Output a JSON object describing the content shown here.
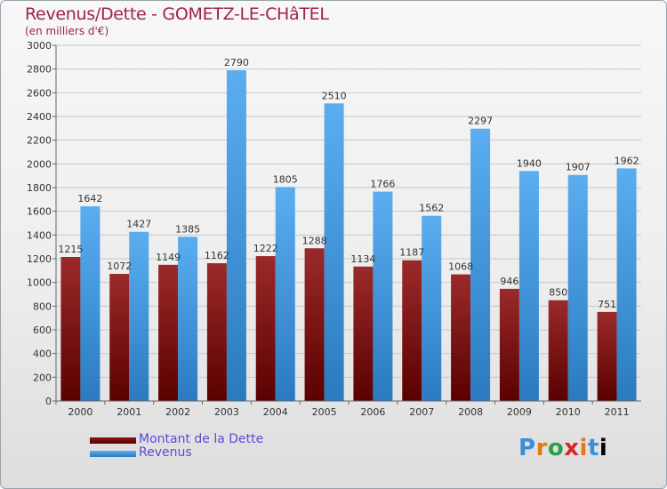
{
  "chart_data": {
    "type": "bar",
    "title": "Revenus/Dette - GOMETZ-LE-CHâTEL",
    "subtitle": "(en milliers d'€)",
    "categories": [
      "2000",
      "2001",
      "2002",
      "2003",
      "2004",
      "2005",
      "2006",
      "2007",
      "2008",
      "2009",
      "2010",
      "2011"
    ],
    "series": [
      {
        "name": "Montant de la Dette",
        "color": "#6b0000",
        "values": [
          1215,
          1072,
          1149,
          1162,
          1222,
          1288,
          1134,
          1187,
          1068,
          946,
          850,
          751
        ]
      },
      {
        "name": "Revenus",
        "color": "#4aa3e6",
        "values": [
          1642,
          1427,
          1385,
          2790,
          1805,
          2510,
          1766,
          1562,
          2297,
          1940,
          1907,
          1962
        ]
      }
    ],
    "ylim": [
      0,
      3000
    ],
    "ytick_step": 200,
    "grid": true,
    "legend": "bottom-left"
  },
  "logo": {
    "letters": [
      "P",
      "r",
      "o",
      "x",
      "i",
      "t",
      "i"
    ]
  }
}
